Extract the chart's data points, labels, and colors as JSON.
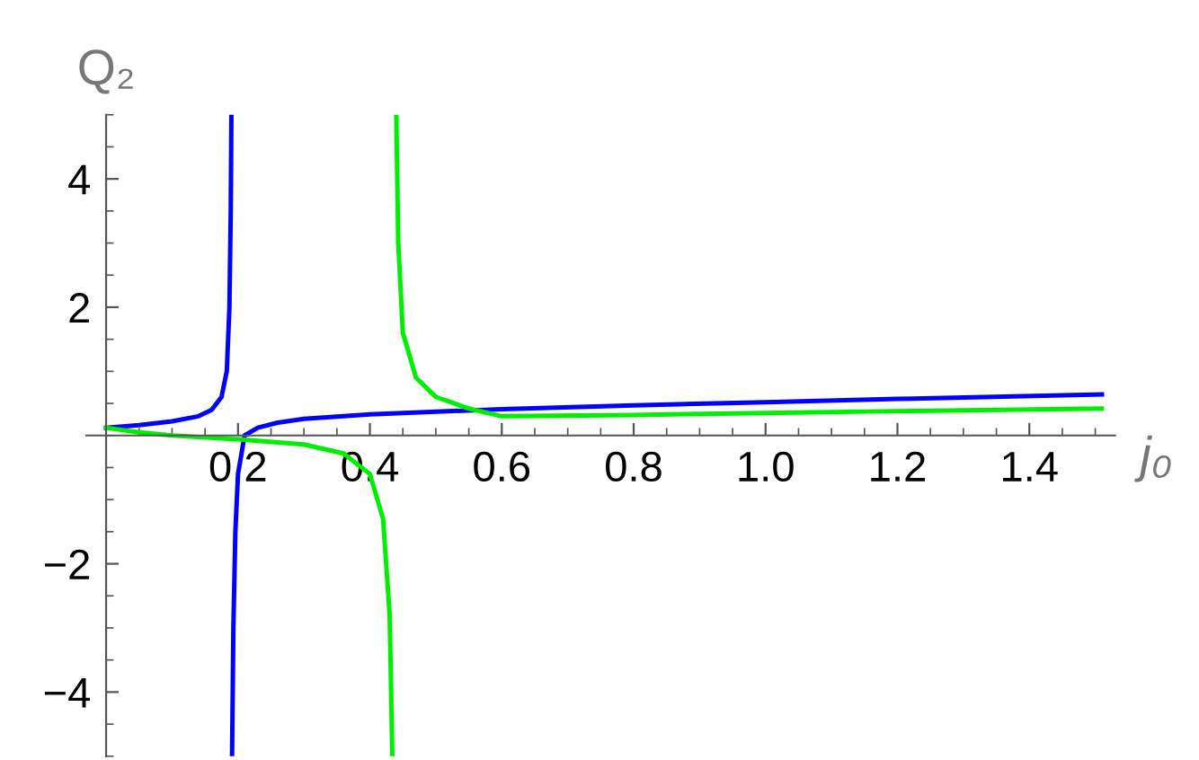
{
  "chart_data": {
    "type": "line",
    "xlabel": "j₀",
    "ylabel": "Q₂",
    "xlim": [
      -0.03,
      1.53
    ],
    "ylim": [
      -5,
      5
    ],
    "xticks": [
      0.2,
      0.4,
      0.6,
      0.8,
      {
        "value": 1.0,
        "label": "1.0"
      },
      1.2,
      1.4
    ],
    "yticks": [
      {
        "value": -4,
        "label": "−4"
      },
      {
        "value": -2,
        "label": "−2"
      },
      2,
      4
    ],
    "grid": false,
    "legend": false,
    "marker": "none",
    "line_style": "solid",
    "series": [
      {
        "color": "#0000ff",
        "x": [
          0,
          0.05,
          0.1,
          0.14,
          0.16,
          0.175,
          0.183,
          0.187,
          0.189,
          0.19,
          0.1905,
          0.191,
          0.193,
          0.196,
          0.2,
          0.21,
          0.23,
          0.26,
          0.3,
          0.4,
          0.6,
          0.8,
          1.0,
          1.2,
          1.51
        ],
        "values": [
          0.12,
          0.16,
          0.22,
          0.3,
          0.4,
          0.6,
          1.0,
          2,
          3.5,
          5,
          null,
          -5,
          -3,
          -1.5,
          -0.6,
          0,
          0.12,
          0.2,
          0.26,
          0.33,
          0.41,
          0.47,
          0.52,
          0.57,
          0.64
        ]
      },
      {
        "color": "#00ee00",
        "x": [
          0,
          0.05,
          0.1,
          0.2,
          0.3,
          0.36,
          0.4,
          0.42,
          0.43,
          0.434,
          0.437,
          0.44,
          0.443,
          0.45,
          0.47,
          0.5,
          0.55,
          0.6,
          0.8,
          1.0,
          1.2,
          1.51
        ],
        "values": [
          0.12,
          0.05,
          0.0,
          -0.06,
          -0.14,
          -0.28,
          -0.6,
          -1.3,
          -2.8,
          -5,
          null,
          5,
          3,
          1.6,
          0.9,
          0.6,
          0.42,
          0.3,
          0.32,
          0.35,
          0.38,
          0.42
        ]
      }
    ]
  }
}
